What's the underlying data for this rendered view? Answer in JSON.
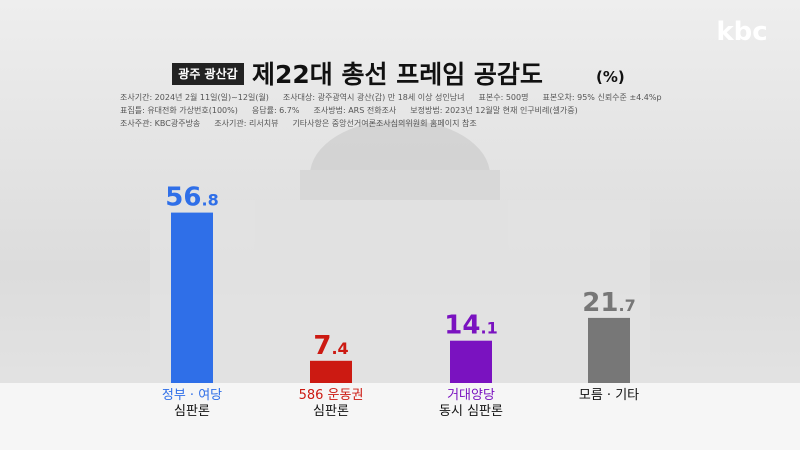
{
  "logo": "kbc",
  "header": {
    "badge": "광주 광산갑",
    "title": "제22대 총선 프레임 공감도",
    "unit": "(%)"
  },
  "notes": [
    [
      "조사기간: 2024년 2월 11일(일)~12일(월)",
      "조사대상: 광주광역시 광산(갑) 만 18세 이상 성인남녀",
      "표본수: 500명",
      "표본오차: 95% 신뢰수준 ±4.4%p"
    ],
    [
      "표집틀: 유대전화 가상번호(100%)",
      "응답률: 6.7%",
      "조사방법: ARS 전화조사",
      "보정방법: 2023년 12월말 현재 인구비례(셀가중)"
    ],
    [
      "조사주관: KBC광주방송",
      "조사기관: 리서치뷰",
      "기타사항은 중앙선거여론조사심의위원회 홈페이지 참조"
    ]
  ],
  "chart_data": {
    "type": "bar",
    "categories": [
      [
        "정부 · 여당",
        "심판론"
      ],
      [
        "586 운동권",
        "심판론"
      ],
      [
        "거대양당",
        "동시 심판론"
      ],
      [
        "모름 · 기타"
      ]
    ],
    "values": [
      56.8,
      7.4,
      14.1,
      21.7
    ],
    "colors": [
      "#2f6fe8",
      "#cc1a12",
      "#7a12c0",
      "#777777"
    ],
    "label_colors": [
      "#2f6fe8",
      "#cc1a12",
      "#7a12c0",
      "#111111"
    ]
  }
}
